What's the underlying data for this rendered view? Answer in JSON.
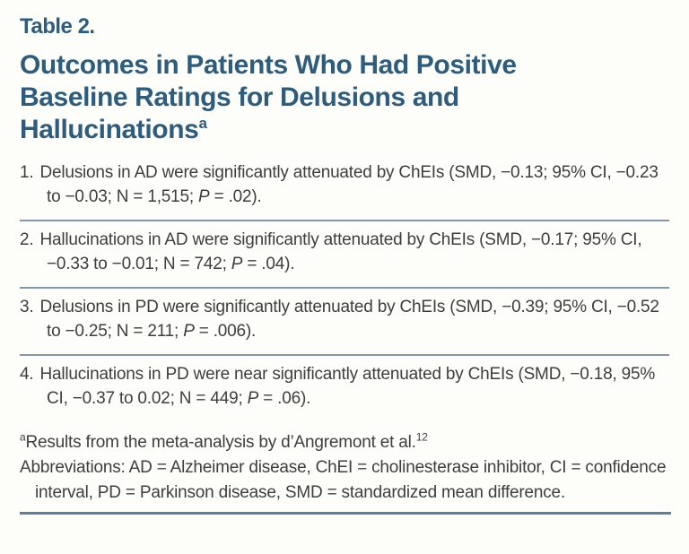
{
  "page": {
    "label": "Table 2.",
    "title": "Outcomes in Patients Who Had Positive Baseline Ratings for Delusions and Hallucinations",
    "title_superscript": "a"
  },
  "items": [
    {
      "num": "1.",
      "parts": [
        {
          "t": "Delusions in AD were significantly attenuated by ChEIs (SMD, −0.13; 95% CI, −0.23 to −0.03; N = 1,515; ",
          "i": false
        },
        {
          "t": "P",
          "i": true
        },
        {
          "t": " = .02).",
          "i": false
        }
      ]
    },
    {
      "num": "2.",
      "parts": [
        {
          "t": "Hallucinations in AD were significantly attenuated by ChEIs (SMD, −0.17; 95% CI, −0.33 to −0.01; N = 742; ",
          "i": false
        },
        {
          "t": "P",
          "i": true
        },
        {
          "t": " = .04).",
          "i": false
        }
      ]
    },
    {
      "num": "3.",
      "parts": [
        {
          "t": "Delusions in PD were significantly attenuated by ChEIs (SMD, −0.39; 95% CI, −0.52 to −0.25; N = 211; ",
          "i": false
        },
        {
          "t": "P",
          "i": true
        },
        {
          "t": " = .006).",
          "i": false
        }
      ]
    },
    {
      "num": "4.",
      "parts": [
        {
          "t": "Hallucinations in PD were near significantly attenuated by ChEIs (SMD, −0.18, 95% CI, −0.37 to 0.02; N = 449; ",
          "i": false
        },
        {
          "t": "P",
          "i": true
        },
        {
          "t": " = .06).",
          "i": false
        }
      ]
    }
  ],
  "footnotes": {
    "source": {
      "sup": "a",
      "text": "Results from the meta-analysis by d’Angremont et al.",
      "ref": "12"
    },
    "abbreviations": "Abbreviations: AD = Alzheimer disease, ChEI = cholinesterase inhibitor, CI = confidence interval, PD = Parkinson disease, SMD = standardized mean difference."
  },
  "colors": {
    "heading_blue": "#2d5c7d",
    "body_text": "#3e3e3e",
    "divider": "#8396ac",
    "bottom_rule": "#5f7d9c",
    "background": "#fdfdfa"
  }
}
